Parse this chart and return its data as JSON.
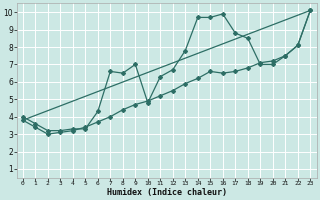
{
  "xlabel": "Humidex (Indice chaleur)",
  "bg_color": "#cce8e4",
  "grid_color": "#ffffff",
  "line_color": "#2d6e65",
  "xlim": [
    -0.5,
    23.5
  ],
  "ylim": [
    0.5,
    10.5
  ],
  "xticks": [
    0,
    1,
    2,
    3,
    4,
    5,
    6,
    7,
    8,
    9,
    10,
    11,
    12,
    13,
    14,
    15,
    16,
    17,
    18,
    19,
    20,
    21,
    22,
    23
  ],
  "yticks": [
    1,
    2,
    3,
    4,
    5,
    6,
    7,
    8,
    9,
    10
  ],
  "line1_x": [
    0,
    1,
    2,
    3,
    4,
    5,
    6,
    7,
    8,
    9,
    10,
    11,
    12,
    13,
    14,
    15,
    16,
    17,
    18,
    19,
    20,
    21,
    22,
    23
  ],
  "line1_y": [
    4.0,
    3.6,
    3.2,
    3.2,
    3.3,
    3.3,
    4.3,
    6.6,
    6.5,
    7.0,
    4.8,
    6.3,
    6.7,
    7.8,
    9.7,
    9.7,
    9.9,
    8.8,
    8.5,
    7.0,
    7.0,
    7.5,
    8.1,
    10.1
  ],
  "line2_x": [
    0,
    1,
    2,
    3,
    4,
    5,
    6,
    7,
    8,
    9,
    10,
    11,
    12,
    13,
    14,
    15,
    16,
    17,
    18,
    19,
    20,
    21,
    22,
    23
  ],
  "line2_y": [
    3.8,
    3.4,
    3.0,
    3.1,
    3.2,
    3.4,
    3.7,
    4.0,
    4.4,
    4.7,
    4.9,
    5.2,
    5.5,
    5.9,
    6.2,
    6.6,
    6.5,
    6.6,
    6.8,
    7.1,
    7.2,
    7.5,
    8.1,
    10.1
  ],
  "line3_x": [
    0,
    23
  ],
  "line3_y": [
    3.8,
    10.1
  ]
}
